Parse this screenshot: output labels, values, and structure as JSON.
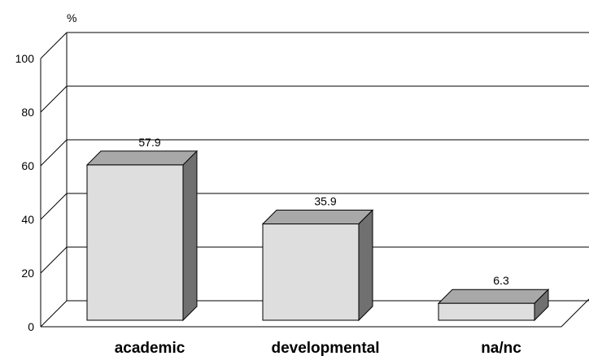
{
  "chart_data": {
    "type": "bar",
    "style": "3d-column",
    "unit_label": "%",
    "categories": [
      "academic",
      "developmental",
      "na/nc"
    ],
    "values": [
      57.9,
      35.9,
      6.3
    ],
    "value_labels": [
      "57.9",
      "35.9",
      "6.3"
    ],
    "y_ticks": [
      "0",
      "20",
      "40",
      "60",
      "80",
      "100"
    ],
    "ylim": [
      0,
      100
    ],
    "grid": true,
    "legend": "none",
    "colors": {
      "bar_front": "#dedede",
      "bar_top": "#a8a8a8",
      "bar_side": "#707070",
      "lines": "#000000"
    }
  }
}
